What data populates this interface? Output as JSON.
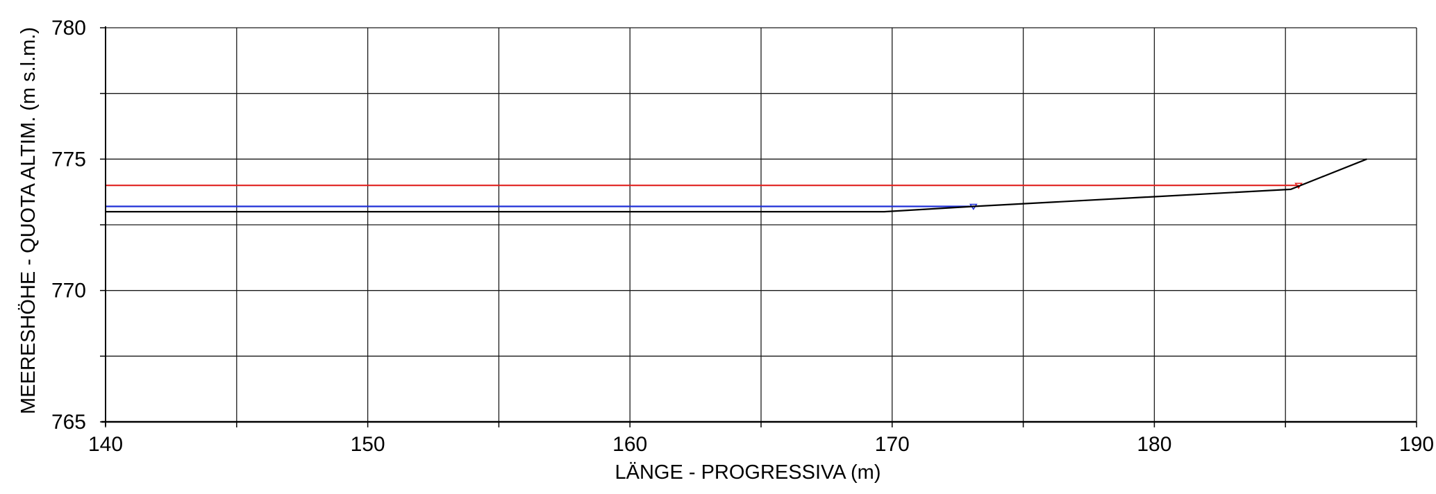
{
  "chart_data": {
    "type": "line",
    "xlabel": "LÄNGE - PROGRESSIVA  (m)",
    "ylabel": "MEERESHÖHE - QUOTA ALTIM.  (m s.l.m.)",
    "xlim": [
      140,
      190
    ],
    "ylim": [
      765,
      780
    ],
    "x_major_ticks": [
      140,
      150,
      160,
      170,
      180,
      190
    ],
    "x_grid": [
      140,
      145,
      150,
      155,
      160,
      165,
      170,
      175,
      180,
      185,
      190
    ],
    "y_major_ticks": [
      765,
      770,
      775,
      780
    ],
    "y_grid": [
      765,
      767.5,
      770,
      772.5,
      775,
      777.5,
      780
    ],
    "grid": true,
    "series": [
      {
        "color": "#e0201e",
        "x": [
          140,
          185.5
        ],
        "y": [
          774.0,
          774.0
        ],
        "marker": {
          "x": 185.5,
          "y": 774.0,
          "symbol": "triangle-down"
        }
      },
      {
        "color": "#1f2fd6",
        "x": [
          140,
          173.1
        ],
        "y": [
          773.2,
          773.2
        ],
        "marker": {
          "x": 173.1,
          "y": 773.2,
          "symbol": "triangle-down"
        }
      },
      {
        "color": "#000000",
        "x": [
          140,
          169.7,
          173.1,
          185.2,
          188.1
        ],
        "y": [
          773.0,
          773.0,
          773.2,
          773.85,
          775.0
        ]
      }
    ]
  }
}
